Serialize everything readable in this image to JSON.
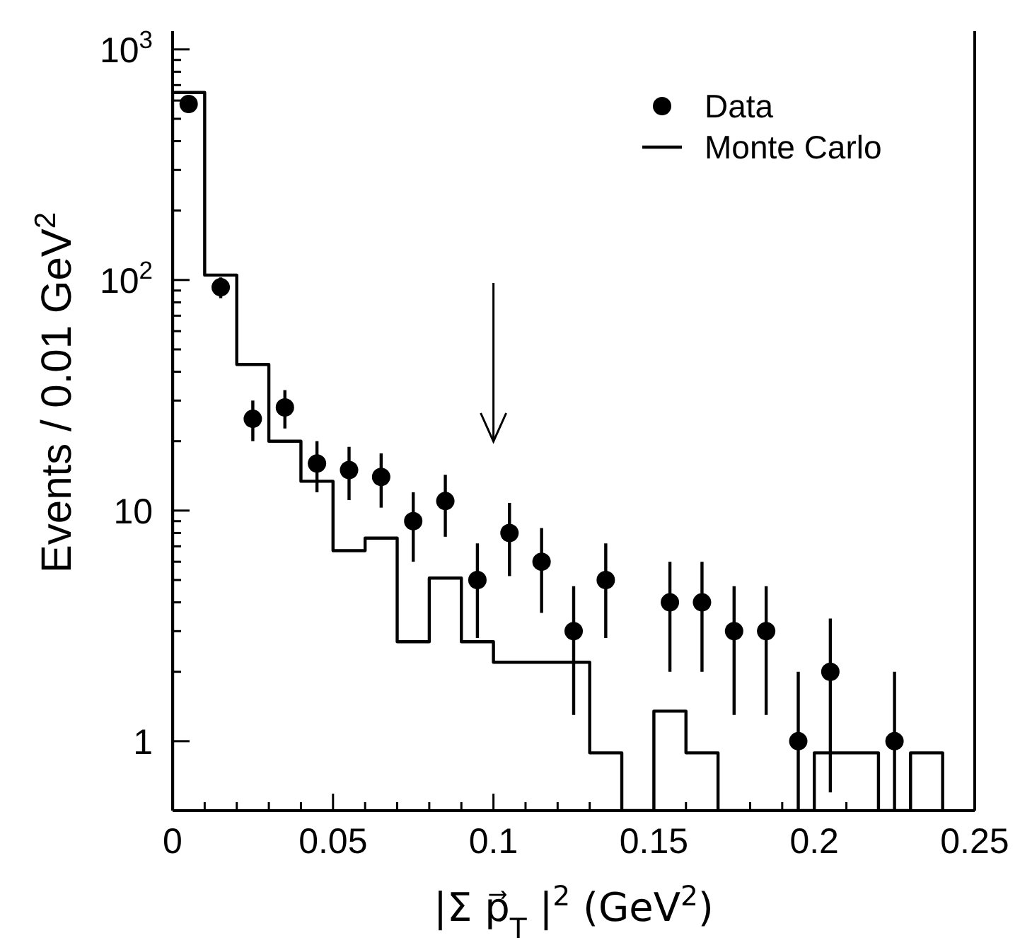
{
  "chart_data": {
    "type": "scatter",
    "xlabel": "|Σ p⃗$_{T}$ |$^{2}$ (GeV$^{2}$)",
    "ylabel": "Events / 0.01 GeV$^{2}$",
    "log": "y",
    "legend": "top right",
    "grid": false,
    "xlim": [
      0,
      0.25
    ],
    "ylim": [
      0.5,
      1200
    ],
    "xticks": [
      0,
      {
        "value": 0.01,
        "label": null
      },
      {
        "value": 0.02,
        "label": null
      },
      {
        "value": 0.03,
        "label": null
      },
      {
        "value": 0.04,
        "label": null
      },
      0.05,
      {
        "value": 0.06,
        "label": null
      },
      {
        "value": 0.07,
        "label": null
      },
      {
        "value": 0.08,
        "label": null
      },
      {
        "value": 0.09,
        "label": null
      },
      0.1,
      {
        "value": 0.11,
        "label": null
      },
      {
        "value": 0.12,
        "label": null
      },
      {
        "value": 0.13,
        "label": null
      },
      {
        "value": 0.14,
        "label": null
      },
      0.15,
      {
        "value": 0.16,
        "label": null
      },
      {
        "value": 0.17,
        "label": null
      },
      {
        "value": 0.18,
        "label": null
      },
      {
        "value": 0.19,
        "label": null
      },
      0.2,
      {
        "value": 0.21,
        "label": null
      },
      {
        "value": 0.22,
        "label": null
      },
      {
        "value": 0.23,
        "label": null
      },
      {
        "value": 0.24,
        "label": null
      },
      0.25
    ],
    "yticks": [
      1,
      {
        "value": 2,
        "label": null
      },
      {
        "value": 3,
        "label": null
      },
      {
        "value": 4,
        "label": null
      },
      {
        "value": 5,
        "label": null
      },
      {
        "value": 6,
        "label": null
      },
      {
        "value": 7,
        "label": null
      },
      {
        "value": 8,
        "label": null
      },
      {
        "value": 9,
        "label": null
      },
      10,
      {
        "value": 20,
        "label": null
      },
      {
        "value": 30,
        "label": null
      },
      {
        "value": 40,
        "label": null
      },
      {
        "value": 50,
        "label": null
      },
      {
        "value": 60,
        "label": null
      },
      {
        "value": 70,
        "label": null
      },
      {
        "value": 80,
        "label": null
      },
      {
        "value": 90,
        "label": null
      },
      {
        "value": 100,
        "label": "10$^{2}$"
      },
      {
        "value": 200,
        "label": null
      },
      {
        "value": 300,
        "label": null
      },
      {
        "value": 400,
        "label": null
      },
      {
        "value": 500,
        "label": null
      },
      {
        "value": 600,
        "label": null
      },
      {
        "value": 700,
        "label": null
      },
      {
        "value": 800,
        "label": null
      },
      {
        "value": 900,
        "label": null
      },
      {
        "value": 1000,
        "label": "10$^{3}$"
      }
    ],
    "marker": "circle",
    "series": [
      {
        "name": "Data",
        "color": "#000000",
        "x": [
          0.005,
          0.015,
          0.025,
          0.035,
          0.045,
          0.055,
          0.065,
          0.075,
          0.085,
          0.095,
          0.105,
          0.115,
          0.125,
          0.135,
          0.155,
          0.165,
          0.175,
          0.185,
          0.195,
          0.205,
          0.225
        ],
        "values": [
          580,
          93,
          25,
          28,
          16,
          15,
          14,
          9,
          11,
          5,
          8,
          6,
          3,
          5,
          4,
          4,
          3,
          3,
          1,
          2,
          1
        ],
        "errors": [
          24,
          9.6,
          5,
          5.3,
          4,
          3.9,
          3.7,
          3,
          3.3,
          2.2,
          2.8,
          2.4,
          1.7,
          2.2,
          2,
          2,
          1.7,
          1.7,
          [
            0.5,
            2
          ],
          1.4,
          [
            0.5,
            2
          ]
        ]
      },
      {
        "type": "histogram",
        "name": "Monte Carlo",
        "color": "#000000",
        "bins": [
          0,
          0.01,
          0.02,
          0.03,
          0.04,
          0.05,
          0.06,
          0.07,
          0.08,
          0.09,
          0.1,
          0.11,
          0.12,
          0.13,
          0.14,
          0.15,
          0.16,
          0.17,
          0.18,
          0.19,
          0.2,
          0.21,
          0.22,
          0.23,
          0.24
        ],
        "values": [
          650,
          105,
          43,
          20,
          13.4,
          6.7,
          7.6,
          2.7,
          5.1,
          2.7,
          2.2,
          2.2,
          2.2,
          0.89,
          null,
          1.35,
          0.89,
          null,
          null,
          null,
          0.89,
          0.89,
          null,
          0.89
        ]
      }
    ]
  }
}
